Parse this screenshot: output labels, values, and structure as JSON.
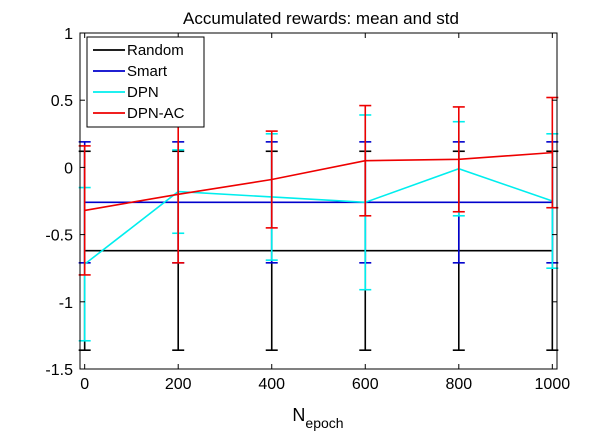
{
  "chart_data": {
    "type": "line",
    "title": "Accumulated rewards: mean and std",
    "xlabel": {
      "main": "N",
      "subscript": "epoch"
    },
    "ylabel": "",
    "xlim": [
      -10,
      1010
    ],
    "ylim": [
      -1.5,
      1
    ],
    "xticks": [
      0,
      200,
      400,
      600,
      800,
      1000
    ],
    "yticks": [
      -1.5,
      -1,
      -0.5,
      0,
      0.5,
      1
    ],
    "xtick_labels": [
      "0",
      "200",
      "400",
      "600",
      "800",
      "1000"
    ],
    "ytick_labels": [
      "-1.5",
      "-1",
      "-0.5",
      "0",
      "0.5",
      "1"
    ],
    "grid": false,
    "legend_position": "top-left",
    "x": [
      0,
      200,
      400,
      600,
      800,
      1000
    ],
    "series": [
      {
        "name": "Random",
        "color": "#000000",
        "mean": [
          -0.62,
          -0.62,
          -0.62,
          -0.62,
          -0.62,
          -0.62
        ],
        "std": [
          0.74,
          0.74,
          0.74,
          0.74,
          0.74,
          0.74
        ]
      },
      {
        "name": "Smart",
        "color": "#0000cc",
        "mean": [
          -0.26,
          -0.26,
          -0.26,
          -0.26,
          -0.26,
          -0.26
        ],
        "std": [
          0.45,
          0.45,
          0.45,
          0.45,
          0.45,
          0.45
        ]
      },
      {
        "name": "DPN",
        "color": "#00eeee",
        "mean": [
          -0.72,
          -0.18,
          -0.22,
          -0.26,
          -0.01,
          -0.25
        ],
        "std": [
          0.57,
          0.31,
          0.47,
          0.65,
          0.35,
          0.5
        ]
      },
      {
        "name": "DPN-AC",
        "color": "#ee0000",
        "mean": [
          -0.32,
          -0.2,
          -0.09,
          0.05,
          0.06,
          0.11
        ],
        "std": [
          0.48,
          0.51,
          0.36,
          0.41,
          0.39,
          0.41
        ]
      }
    ]
  }
}
